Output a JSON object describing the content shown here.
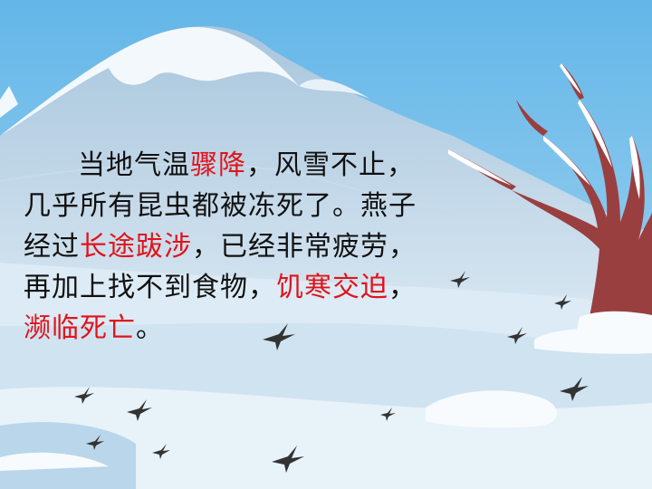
{
  "story": {
    "line1": {
      "a": "当地气温",
      "hl": "骤降",
      "b": "，风雪不止，"
    },
    "line2": {
      "a": "几乎所有昆虫都被冻死了。燕子"
    },
    "line3": {
      "a": "经过",
      "hl": "长途跋涉",
      "b": "，已经非常疲劳，"
    },
    "line4": {
      "a": "再加上找不到食物，",
      "hl": "饥寒交迫",
      "b": "，"
    },
    "line5": {
      "hl": "濒临死亡",
      "b": "。"
    }
  },
  "colors": {
    "sky": "#5fb4e6",
    "mountain": "#b9d3e6",
    "snow": "#f2f8fc",
    "trunk": "#9a3f3f",
    "highlight": "#e0141b"
  },
  "icons": [
    "swallow-icon",
    "bare-tree-icon",
    "snow-mountain-icon"
  ]
}
